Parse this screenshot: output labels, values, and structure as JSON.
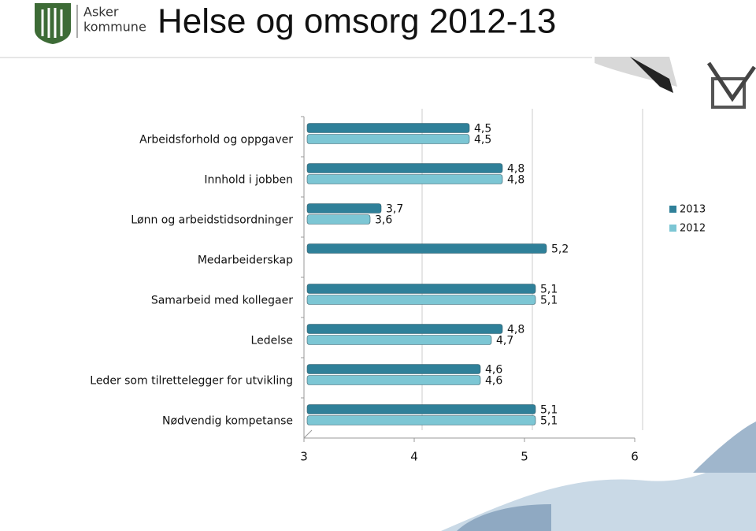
{
  "logo_text": [
    "Asker",
    "kommune"
  ],
  "chart_data": {
    "type": "bar",
    "orientation": "horizontal",
    "title": "Helse og omsorg 2012-13",
    "categories": [
      "Arbeidsforhold og oppgaver",
      "Innhold i jobben",
      "Lønn og arbeidstidsordninger",
      "Medarbeiderskap",
      "Samarbeid med kollegaer",
      "Ledelse",
      "Leder som tilrettelegger for utvikling",
      "Nødvendig kompetanse"
    ],
    "series": [
      {
        "name": "2013",
        "color": "#2f8099",
        "values": [
          4.5,
          4.8,
          3.7,
          5.2,
          5.1,
          4.8,
          4.6,
          5.1
        ],
        "value_labels": [
          "4,5",
          "4,8",
          "3,7",
          "5,2",
          "5,1",
          "4,8",
          "4,6",
          "5,1"
        ]
      },
      {
        "name": "2012",
        "color": "#7cc6d4",
        "values": [
          4.5,
          4.8,
          3.6,
          null,
          5.1,
          4.7,
          4.6,
          5.1
        ],
        "value_labels": [
          "4,5",
          "4,8",
          "3,6",
          null,
          "5,1",
          "4,7",
          "4,6",
          "5,1"
        ]
      }
    ],
    "xlim": [
      3,
      6
    ],
    "xticks": [
      3,
      4,
      5,
      6
    ],
    "grid": true,
    "legend": "right"
  }
}
